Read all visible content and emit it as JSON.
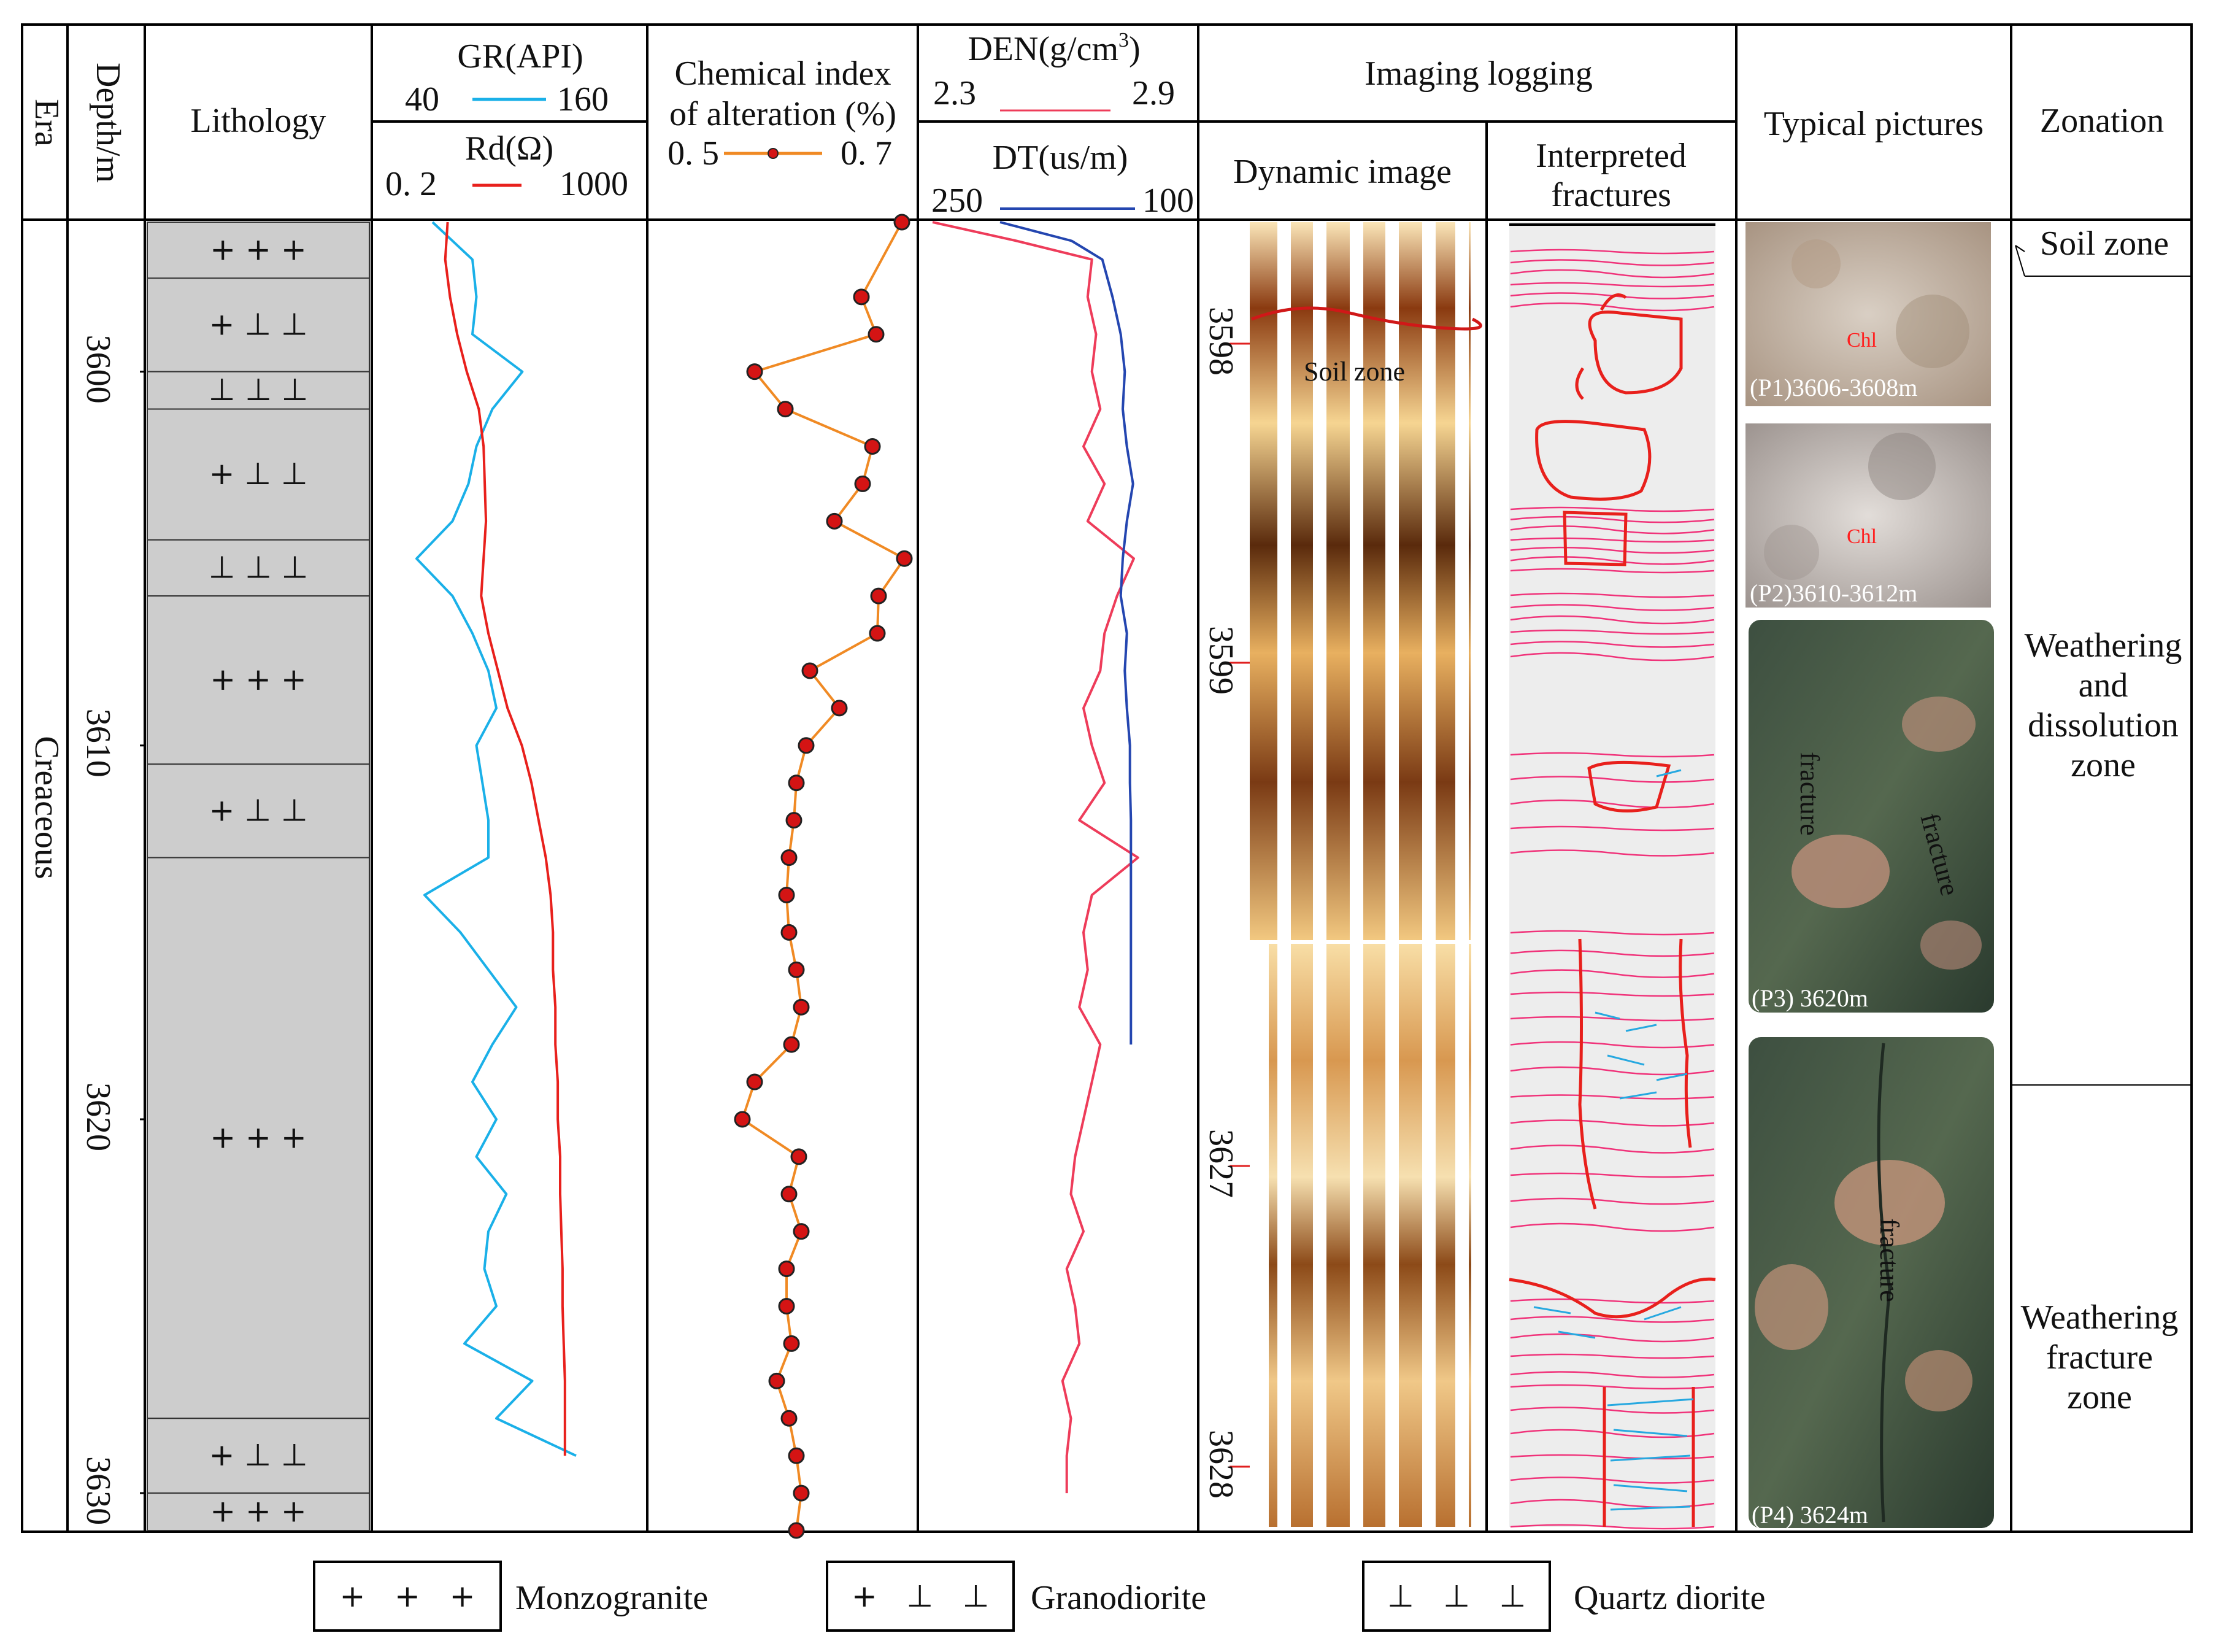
{
  "header": {
    "era": "Era",
    "depth": "Depth/m",
    "lithology": "Lithology",
    "gr_label": "GR(API)",
    "gr_min": "40",
    "gr_max": "160",
    "rd_label": "Rd(Ω)",
    "rd_min": "0. 2",
    "rd_max": "1000",
    "cia_line1": "Chemical index",
    "cia_line2": "of alteration (%)",
    "cia_min": "0. 5",
    "cia_max": "0. 7",
    "den_label": "DEN(g/cm",
    "den_sup": "3",
    "den_close": ")",
    "den_min": "2.3",
    "den_max": "2.9",
    "dt_label": "DT(us/m)",
    "dt_min": "250",
    "dt_max": "100",
    "imaging": "Imaging logging",
    "dynamic": "Dynamic image",
    "interp1": "Interpreted",
    "interp2": "fractures",
    "typical": "Typical pictures",
    "zonation": "Zonation"
  },
  "era_value": "Creaceous",
  "depth_ticks": [
    "3600",
    "3610",
    "3620",
    "3630"
  ],
  "image_depth_ticks": [
    "3598",
    "3599",
    "3627",
    "3628"
  ],
  "soil_zone_label": "Soil zone",
  "lithology_symbols": {
    "monzogranite": "+   +   +",
    "granodiorite": "+   ⊥   ⊥",
    "quartz_diorite": "⊥   ⊥   ⊥"
  },
  "lithology_intervals": [
    {
      "top": 3596,
      "bottom": 3597.5,
      "rock": "monzogranite"
    },
    {
      "top": 3597.5,
      "bottom": 3600,
      "rock": "granodiorite"
    },
    {
      "top": 3600,
      "bottom": 3601,
      "rock": "quartz_diorite"
    },
    {
      "top": 3601,
      "bottom": 3604.5,
      "rock": "granodiorite"
    },
    {
      "top": 3604.5,
      "bottom": 3606,
      "rock": "quartz_diorite"
    },
    {
      "top": 3606,
      "bottom": 3610.5,
      "rock": "monzogranite"
    },
    {
      "top": 3610.5,
      "bottom": 3613,
      "rock": "granodiorite"
    },
    {
      "top": 3613,
      "bottom": 3628,
      "rock": "monzogranite"
    },
    {
      "top": 3628,
      "bottom": 3630,
      "rock": "granodiorite"
    },
    {
      "top": 3630,
      "bottom": 3631,
      "rock": "monzogranite"
    }
  ],
  "pictures": [
    {
      "caption": "(P1)3606-3608m",
      "mineral": "Chl",
      "colors": [
        "#d8cdc2",
        "#b7a595",
        "#8e7b69"
      ]
    },
    {
      "caption": "(P2)3610-3612m",
      "mineral": "Chl",
      "colors": [
        "#dcd7d4",
        "#b9b1ad",
        "#7f7672"
      ]
    },
    {
      "caption": "(P3) 3620m",
      "fracture_labels": [
        "fracture",
        "fracture"
      ],
      "colors": [
        "#2f3e32",
        "#5a6b55",
        "#b78c78"
      ]
    },
    {
      "caption": "(P4) 3624m",
      "fracture_labels": [
        "fracture"
      ],
      "colors": [
        "#34453a",
        "#627660",
        "#c3937a"
      ]
    }
  ],
  "zones": [
    {
      "lines": [
        "Soil zone"
      ]
    },
    {
      "lines": [
        "Weathering",
        "and",
        "dissolution",
        "zone"
      ]
    },
    {
      "lines": [
        "Weathering",
        "fracture",
        "zone"
      ]
    }
  ],
  "legend": [
    {
      "symbol": "+   +   +",
      "label": "Monzogranite"
    },
    {
      "symbol": "+   ⊥   ⊥",
      "label": "Granodiorite"
    },
    {
      "symbol": "⊥   ⊥   ⊥",
      "label": "Quartz diorite"
    }
  ],
  "colors": {
    "gr": "#1ab0e8",
    "rd": "#e8201c",
    "cia_line": "#f08a24",
    "cia_marker": "#d41414",
    "den": "#ee3c5a",
    "dt": "#2446b0",
    "lithology_fill": "#cdcdcd",
    "fracture_sine": "#f0337a",
    "fracture_major": "#e8201c",
    "fracture_minor": "#26a8e0"
  },
  "chart_data": {
    "type": "line",
    "depth_range": [
      3596,
      3631
    ],
    "series": [
      {
        "name": "GR(API)",
        "range": [
          40,
          160
        ],
        "depth": [
          3596,
          3597,
          3598,
          3599,
          3600,
          3601,
          3602,
          3603,
          3604,
          3605,
          3606,
          3607,
          3608,
          3609,
          3610,
          3611,
          3612,
          3613,
          3614,
          3615,
          3616,
          3617,
          3618,
          3619,
          3620,
          3621,
          3622,
          3623,
          3624,
          3625,
          3626,
          3627,
          3628,
          3629
        ],
        "values": [
          60,
          80,
          82,
          80,
          105,
          90,
          82,
          78,
          70,
          52,
          70,
          80,
          88,
          92,
          82,
          85,
          88,
          88,
          56,
          74,
          88,
          102,
          90,
          80,
          92,
          82,
          97,
          88,
          86,
          92,
          76,
          110,
          92,
          132
        ]
      },
      {
        "name": "Rd(Ω)",
        "range": [
          0.2,
          1000
        ],
        "depth": [
          3596,
          3597,
          3598,
          3599,
          3600,
          3601,
          3602,
          3603,
          3604,
          3605,
          3606,
          3607,
          3608,
          3609,
          3610,
          3611,
          3612,
          3613,
          3614,
          3615,
          3616,
          3617,
          3618,
          3619,
          3620,
          3621,
          3622,
          3623,
          3624,
          3625,
          3626,
          3627,
          3628,
          3629
        ],
        "values": [
          230,
          220,
          240,
          270,
          310,
          360,
          380,
          385,
          390,
          380,
          370,
          400,
          440,
          480,
          540,
          580,
          610,
          640,
          660,
          670,
          670,
          680,
          680,
          690,
          690,
          700,
          700,
          705,
          710,
          710,
          715,
          720,
          720,
          720
        ]
      },
      {
        "name": "Chemical index of alteration (%)",
        "range": [
          0.5,
          0.7
        ],
        "depth": [
          3596,
          3598,
          3599,
          3600,
          3601,
          3602,
          3603,
          3604,
          3605,
          3606,
          3607,
          3608,
          3609,
          3610,
          3611,
          3612,
          3613,
          3614,
          3615,
          3616,
          3617,
          3618,
          3619,
          3620,
          3621,
          3622,
          3623,
          3624,
          3625,
          3626,
          3627,
          3628,
          3629,
          3630,
          3631
        ],
        "values": [
          0.695,
          0.662,
          0.674,
          0.575,
          0.6,
          0.671,
          0.663,
          0.64,
          0.697,
          0.676,
          0.675,
          0.62,
          0.644,
          0.617,
          0.609,
          0.607,
          0.603,
          0.601,
          0.603,
          0.609,
          0.613,
          0.605,
          0.575,
          0.565,
          0.611,
          0.603,
          0.613,
          0.601,
          0.601,
          0.605,
          0.593,
          0.603,
          0.609,
          0.613,
          0.609
        ]
      },
      {
        "name": "DEN(g/cm3)",
        "range": [
          2.3,
          2.9
        ],
        "depth": [
          3596,
          3596.5,
          3597,
          3598,
          3599,
          3600,
          3601,
          3602,
          3603,
          3604,
          3605,
          3606,
          3607,
          3608,
          3609,
          3610,
          3611,
          3612,
          3613,
          3614,
          3615,
          3616,
          3617,
          3618,
          3619,
          3620,
          3621,
          3622,
          3623,
          3624,
          3625,
          3626,
          3627,
          3628,
          3629,
          3630
        ],
        "values": [
          2.3,
          2.5,
          2.68,
          2.67,
          2.69,
          2.68,
          2.7,
          2.66,
          2.71,
          2.67,
          2.78,
          2.74,
          2.71,
          2.7,
          2.66,
          2.68,
          2.71,
          2.65,
          2.79,
          2.68,
          2.66,
          2.67,
          2.65,
          2.7,
          2.68,
          2.66,
          2.64,
          2.63,
          2.66,
          2.62,
          2.64,
          2.65,
          2.61,
          2.63,
          2.62,
          2.62
        ]
      },
      {
        "name": "DT(us/m)",
        "range": [
          250,
          100
        ],
        "depth": [
          3596,
          3596.5,
          3597,
          3598,
          3599,
          3600,
          3601,
          3602,
          3603,
          3604,
          3605,
          3606,
          3607,
          3608,
          3609,
          3610,
          3611,
          3612,
          3613,
          3614,
          3615,
          3616,
          3617,
          3618
        ],
        "values": [
          250,
          180,
          150,
          140,
          132,
          128,
          130,
          126,
          120,
          126,
          130,
          132,
          126,
          128,
          126,
          123,
          123,
          122,
          122,
          122,
          122,
          122,
          122,
          122
        ]
      }
    ]
  }
}
